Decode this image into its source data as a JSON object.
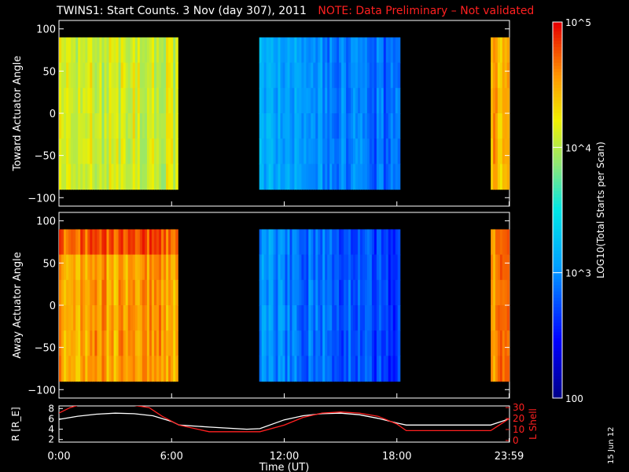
{
  "title": {
    "main": "TWINS1: Start Counts.  3 Nov (day 307), 2011",
    "note": "NOTE: Data Preliminary – Not validated"
  },
  "date_stamp": "15 Jun 12",
  "colors": {
    "background": "#000000",
    "axes": "#ffffff",
    "note": "#ff2020",
    "l_shell_line": "#ff2020",
    "r_line": "#ffffff"
  },
  "chart_data": [
    {
      "type": "heatmap",
      "ylabel": "Toward Actuator Angle",
      "ylim": [
        -110,
        110
      ],
      "yticks": [
        "100",
        "50",
        "0",
        "−50",
        "−100"
      ],
      "ytick_values": [
        100,
        50,
        0,
        -50,
        -100
      ],
      "xlim_hours": [
        0,
        24
      ],
      "data_angle_range": [
        -90,
        90
      ],
      "segments": [
        {
          "start": "0:00",
          "end": "6:20",
          "dominant_level": "10^3.5–10^4"
        },
        {
          "start": "10:40",
          "end": "18:10",
          "dominant_level": "10^2.5–10^3"
        },
        {
          "start": "23:00",
          "end": "23:59",
          "dominant_level": "10^4–10^4.5"
        }
      ]
    },
    {
      "type": "heatmap",
      "ylabel": "Away Actuator Angle",
      "ylim": [
        -110,
        110
      ],
      "yticks": [
        "100",
        "50",
        "0",
        "−50",
        "−100"
      ],
      "ytick_values": [
        100,
        50,
        0,
        -50,
        -100
      ],
      "xlim_hours": [
        0,
        24
      ],
      "data_angle_range": [
        -90,
        90
      ],
      "segments": [
        {
          "start": "0:00",
          "end": "6:20",
          "dominant_level": "10^4–10^4.5"
        },
        {
          "start": "10:40",
          "end": "18:10",
          "dominant_level": "10^2.3–10^3"
        },
        {
          "start": "23:00",
          "end": "23:59",
          "dominant_level": "10^4–10^5"
        }
      ]
    },
    {
      "type": "line",
      "xlabel": "Time (UT)",
      "ylabel_left": "R [R_E]",
      "ylabel_right": "L Shell",
      "xticks": [
        "0:00",
        "6:00",
        "12:00",
        "18:00",
        "23:59"
      ],
      "xtick_hours": [
        0,
        6,
        12,
        18,
        23.98
      ],
      "left_yticks": [
        2,
        4,
        6,
        8
      ],
      "left_ylim": [
        1.5,
        8.5
      ],
      "right_yticks": [
        0,
        10,
        20,
        30
      ],
      "right_ylim": [
        -1.5,
        31.5
      ],
      "series": [
        {
          "name": "R",
          "hours": [
            0,
            1,
            2,
            3,
            4,
            5,
            6,
            6.4,
            8,
            10,
            10.7,
            12,
            13,
            14,
            15,
            16,
            17,
            18,
            18.5,
            20,
            22,
            23,
            23.99
          ],
          "values": [
            5.9,
            6.5,
            6.9,
            7.1,
            7.0,
            6.6,
            5.5,
            4.8,
            4.4,
            4.0,
            4.1,
            5.8,
            6.6,
            7.0,
            7.1,
            6.8,
            6.1,
            5.2,
            4.8,
            4.8,
            4.8,
            4.8,
            6.0
          ]
        },
        {
          "name": "L Shell",
          "hours": [
            0,
            0.6,
            1,
            4,
            4.8,
            5.5,
            6.4,
            8,
            10,
            10.7,
            12,
            13,
            14,
            15,
            16,
            17,
            18,
            18.5,
            20,
            22,
            23,
            23.99
          ],
          "values": [
            25,
            30,
            32,
            32,
            30,
            22,
            14,
            8,
            8,
            8,
            14,
            21,
            25,
            26,
            25,
            22,
            15,
            9,
            9,
            9,
            9,
            20
          ]
        }
      ]
    },
    {
      "type": "heatmap",
      "role": "colorbar",
      "label": "LOG10(Total Starts per Scan)",
      "ticks": [
        "10^5",
        "10^4",
        "10^3",
        "100"
      ],
      "range_log10": [
        2,
        5
      ]
    }
  ]
}
